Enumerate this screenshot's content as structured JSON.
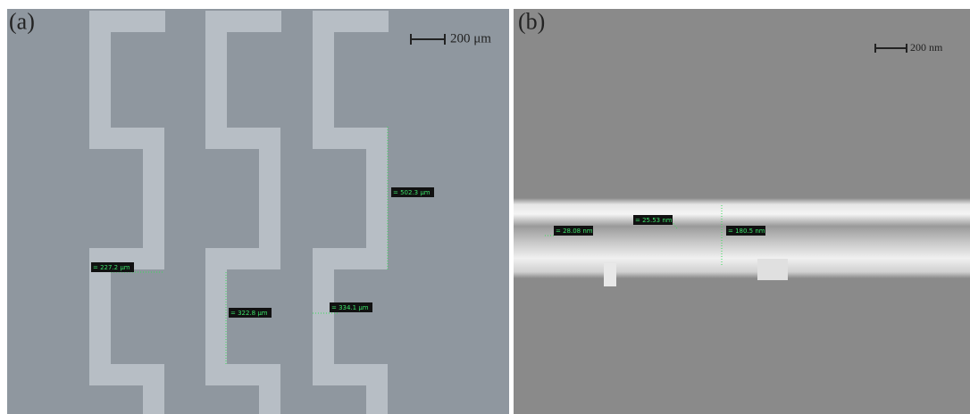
{
  "panels": [
    {
      "label": "(a)",
      "scale_bar": "200 μm",
      "measurements": [
        "= 227.2 μm",
        "= 322.8 μm",
        "= 334.1 μm",
        "= 502.3 μm"
      ]
    },
    {
      "label": "(b)",
      "scale_bar": "200 nm",
      "measurements": [
        "= 28.08 nm",
        "= 25.53 nm",
        "= 180.5 nm"
      ]
    }
  ]
}
